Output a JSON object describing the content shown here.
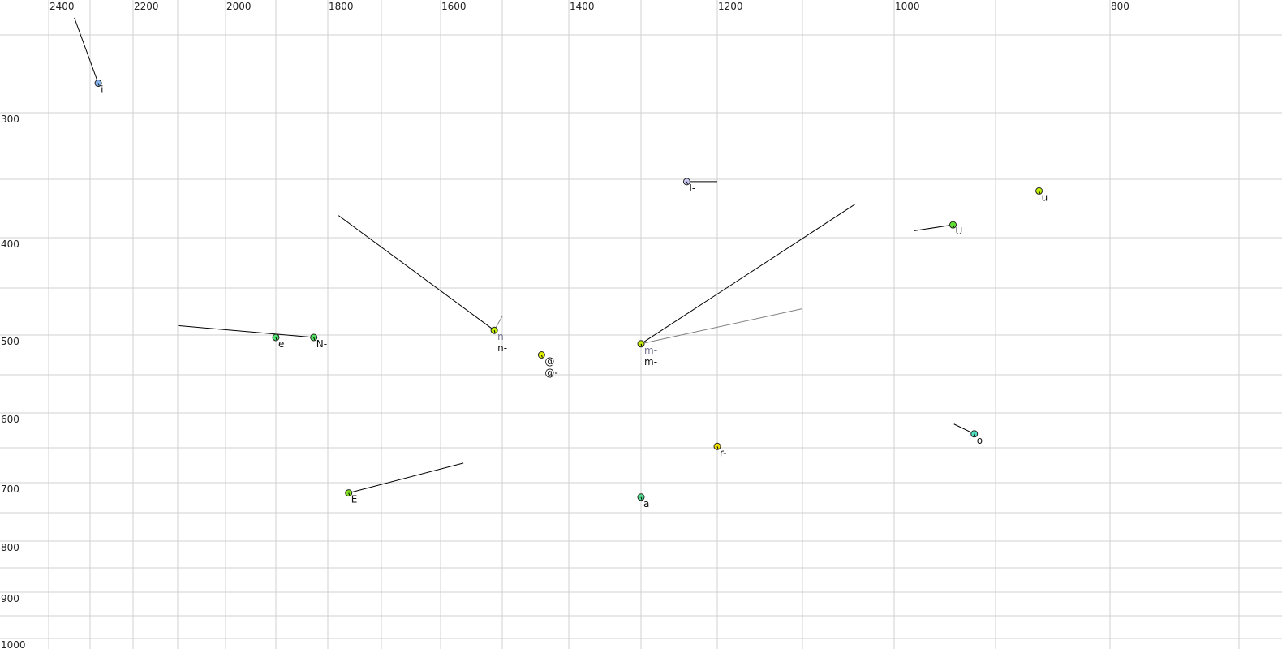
{
  "chart_data": {
    "type": "scatter",
    "title": "",
    "xlabel": "",
    "ylabel": "",
    "x_axis": {
      "quantity": "F2",
      "reversed": true,
      "scale": "nonlinear",
      "labeled_ticks": [
        2400,
        2200,
        2000,
        1800,
        1600,
        1400,
        1200,
        1000,
        800
      ],
      "gridlines": [
        2400,
        2300,
        2200,
        2100,
        2000,
        1900,
        1800,
        1700,
        1600,
        1500,
        1400,
        1300,
        1200,
        1100,
        1000,
        900,
        800,
        700
      ]
    },
    "y_axis": {
      "quantity": "F1",
      "reversed": false,
      "scale": "nonlinear",
      "labeled_ticks": [
        300,
        400,
        500,
        600,
        700,
        800,
        900,
        1000
      ],
      "gridlines": [
        250,
        300,
        350,
        400,
        450,
        500,
        550,
        600,
        650,
        700,
        750,
        800,
        850,
        900,
        950,
        1000
      ]
    },
    "grid": true,
    "grid_color": "#d0d0d0",
    "points": [
      {
        "label": "i",
        "f2": 2281,
        "f1": 281,
        "color": "#88b4ee",
        "trails": [
          {
            "f2": 2338,
            "f1": 239,
            "color": "#000000"
          }
        ]
      },
      {
        "label": "I-",
        "f2": 1240,
        "f1": 352,
        "color": "#c8c8f0",
        "trails": [
          {
            "f2": 1200,
            "f1": 352,
            "color": "#000000"
          }
        ]
      },
      {
        "label": "u",
        "f2": 862,
        "f1": 360,
        "color": "#c0f000",
        "trails": []
      },
      {
        "label": "U",
        "f2": 942,
        "f1": 389,
        "color": "#60e030",
        "trails": [
          {
            "f2": 980,
            "f1": 394,
            "color": "#000000"
          }
        ]
      },
      {
        "label": "e",
        "f2": 1900,
        "f1": 503,
        "color": "#50e070",
        "trails": []
      },
      {
        "label": "N-",
        "f2": 1827,
        "f1": 503,
        "color": "#50e060",
        "trails": [
          {
            "f2": 2099,
            "f1": 490,
            "color": "#000000"
          }
        ]
      },
      {
        "label": "n-",
        "label2": "n-",
        "f2": 1513,
        "f1": 495,
        "color": "#c0f000",
        "trails": [
          {
            "f2": 1780,
            "f1": 381,
            "color": "#000000"
          },
          {
            "f2": 1500,
            "f1": 480,
            "color": "#808080"
          }
        ]
      },
      {
        "label": "@",
        "label2": "@-",
        "f2": 1441,
        "f1": 525,
        "color": "#e0f000",
        "trails": []
      },
      {
        "label": "m-",
        "label2": "m-",
        "f2": 1300,
        "f1": 511,
        "color": "#c8f000",
        "trails": [
          {
            "f2": 1042,
            "f1": 371,
            "color": "#000000"
          },
          {
            "f2": 1100,
            "f1": 472,
            "color": "#808080"
          }
        ]
      },
      {
        "label": "r-",
        "f2": 1200,
        "f1": 648,
        "color": "#f0e000",
        "trails": [
          {
            "f2": 1200,
            "f1": 644,
            "color": "#000000"
          }
        ]
      },
      {
        "label": "o",
        "f2": 921,
        "f1": 630,
        "color": "#50e0c0",
        "trails": [
          {
            "f2": 941,
            "f1": 616,
            "color": "#000000"
          }
        ]
      },
      {
        "label": "E",
        "f2": 1761,
        "f1": 717,
        "color": "#80e020",
        "trails": [
          {
            "f2": 1563,
            "f1": 672,
            "color": "#000000"
          }
        ]
      },
      {
        "label": "a",
        "f2": 1300,
        "f1": 724,
        "color": "#50e090",
        "trails": []
      }
    ]
  }
}
